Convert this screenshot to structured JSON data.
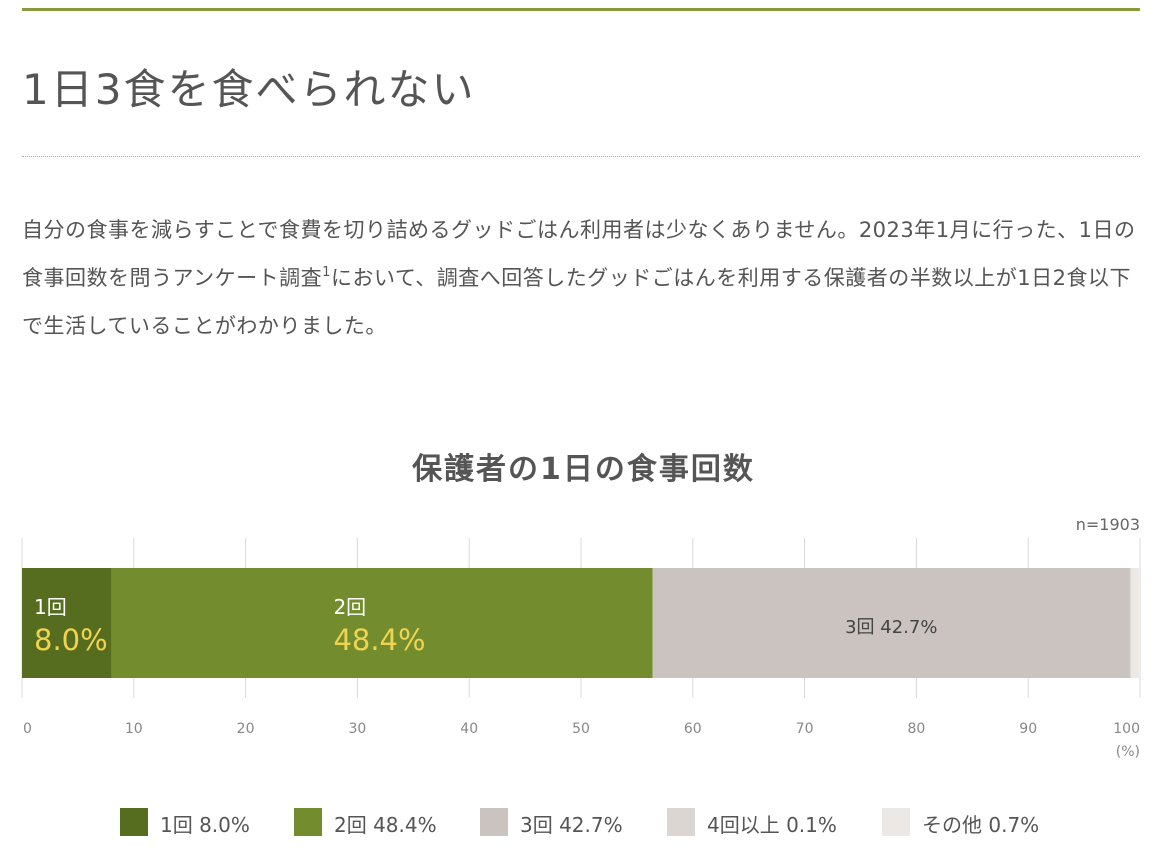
{
  "page": {
    "title": "1日3食を食べられない",
    "paragraph_before_sup": "自分の食事を減らすことで食費を切り詰めるグッドごはん利用者は少なくありません。2023年1月に行った、1日の食事回数を問うアンケート調査",
    "paragraph_sup": "1",
    "paragraph_after_sup": "において、調査へ回答したグッドごはんを利用する保護者の半数以上が1日2食以下で生活していることがわかりました。"
  },
  "chart_data": {
    "type": "bar",
    "orientation": "horizontal-stacked",
    "title": "保護者の1日の食事回数",
    "sample_size_label": "n=1903",
    "unit_label": "(%)",
    "xlim": [
      0,
      100
    ],
    "x_ticks": [
      0,
      10,
      20,
      30,
      40,
      50,
      60,
      70,
      80,
      90,
      100
    ],
    "grid": true,
    "legend_position": "bottom",
    "series": [
      {
        "name": "1回",
        "value": 8.0,
        "value_label": "8.0%",
        "legend_label": "1回 8.0%",
        "color": "#566d1f",
        "label_style": "large"
      },
      {
        "name": "2回",
        "value": 48.4,
        "value_label": "48.4%",
        "legend_label": "2回 48.4%",
        "color": "#738d2e",
        "label_style": "large"
      },
      {
        "name": "3回",
        "value": 42.7,
        "value_label": "42.7%",
        "legend_label": "3回 42.7%",
        "color": "#cbc3bf",
        "label_style": "inline",
        "bar_label": "3回 42.7%"
      },
      {
        "name": "4回以上",
        "value": 0.1,
        "value_label": "0.1%",
        "legend_label": "4回以上 0.1%",
        "color": "#dcd6d3",
        "label_style": "none"
      },
      {
        "name": "その他",
        "value": 0.7,
        "value_label": "0.7%",
        "legend_label": "その他 0.7%",
        "color": "#ebe8e6",
        "label_style": "none"
      }
    ],
    "colors": {
      "large_value_text": "#f0d350",
      "large_name_text": "#ffffff",
      "inline_text": "#444444",
      "grid": "#d9d9d9",
      "tick_text": "#888888"
    }
  }
}
